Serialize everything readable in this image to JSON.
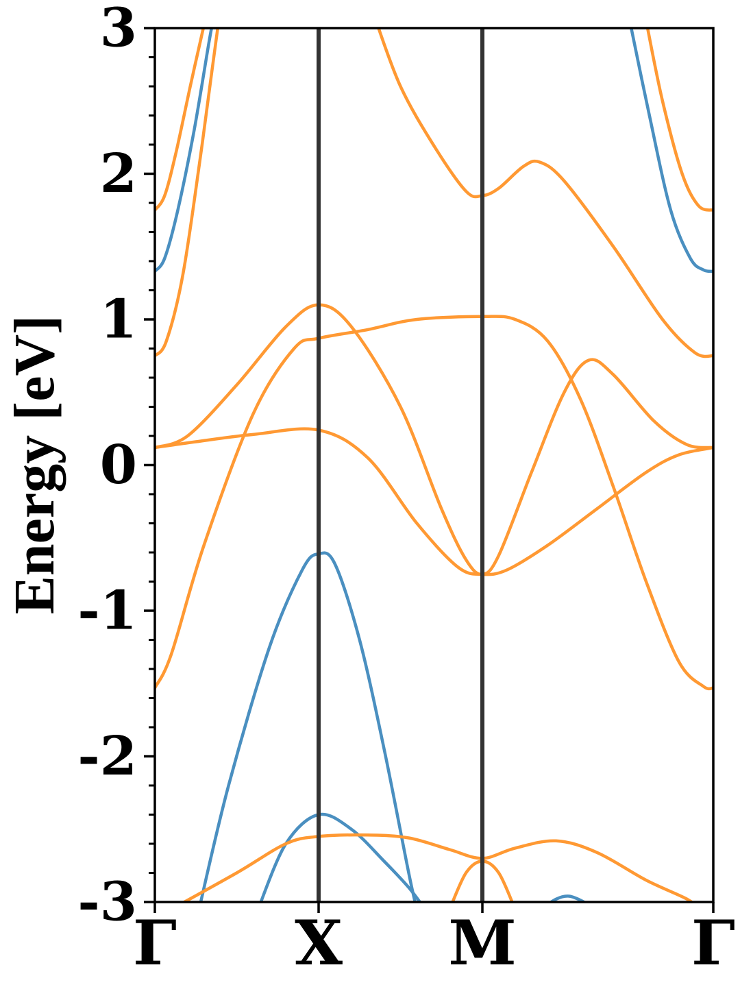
{
  "chart_data": {
    "type": "line",
    "title": "",
    "xlabel": "",
    "ylabel": "Energy [eV]",
    "ylim": [
      -3,
      3
    ],
    "y_ticks": [
      "3",
      "2",
      "1",
      "0",
      "-1",
      "-2",
      "-3"
    ],
    "y_minor_step": 0.2,
    "x_ticks": [
      {
        "label": "Γ",
        "pos": 0.0
      },
      {
        "label": "X",
        "pos": 1.0
      },
      {
        "label": "M",
        "pos": 2.0
      },
      {
        "label": "Γ",
        "pos": 3.41
      }
    ],
    "xlim": [
      0,
      3.41
    ],
    "grid": false,
    "legend": "none",
    "colors": {
      "blue": "#4a8fc0",
      "orange": "#ff9933",
      "vline": "#333333",
      "axis": "#000000"
    },
    "series": [
      {
        "color": "blue",
        "points": [
          [
            0,
            1.33
          ],
          [
            0.06,
            1.42
          ],
          [
            0.14,
            1.75
          ],
          [
            0.24,
            2.3
          ],
          [
            0.33,
            2.9
          ],
          [
            0.355,
            3.05
          ]
        ]
      },
      {
        "color": "orange",
        "points": [
          [
            0,
            1.75
          ],
          [
            0.06,
            1.85
          ],
          [
            0.13,
            2.15
          ],
          [
            0.22,
            2.62
          ],
          [
            0.3,
            3.02
          ]
        ]
      },
      {
        "color": "orange",
        "points": [
          [
            0,
            0.75
          ],
          [
            0.07,
            0.85
          ],
          [
            0.17,
            1.3
          ],
          [
            0.27,
            2.05
          ],
          [
            0.35,
            2.72
          ],
          [
            0.39,
            3.05
          ]
        ]
      },
      {
        "color": "orange",
        "points": [
          [
            0,
            0.12
          ],
          [
            0.25,
            0.16
          ],
          [
            0.6,
            0.21
          ],
          [
            1,
            0.24
          ],
          [
            1.3,
            0.05
          ],
          [
            1.6,
            -0.4
          ],
          [
            1.85,
            -0.7
          ],
          [
            2,
            -0.75
          ],
          [
            2.15,
            -0.72
          ],
          [
            2.4,
            -0.55
          ],
          [
            2.7,
            -0.3
          ],
          [
            3.0,
            -0.05
          ],
          [
            3.2,
            0.07
          ],
          [
            3.41,
            0.12
          ]
        ]
      },
      {
        "color": "orange",
        "points": [
          [
            0,
            0.12
          ],
          [
            0.2,
            0.2
          ],
          [
            0.5,
            0.55
          ],
          [
            0.8,
            0.95
          ],
          [
            1,
            1.1
          ],
          [
            1.2,
            0.95
          ],
          [
            1.5,
            0.4
          ],
          [
            1.75,
            -0.3
          ],
          [
            1.9,
            -0.65
          ],
          [
            2,
            -0.75
          ],
          [
            2.1,
            -0.62
          ],
          [
            2.3,
            -0.05
          ],
          [
            2.5,
            0.5
          ],
          [
            2.65,
            0.72
          ],
          [
            2.8,
            0.62
          ],
          [
            3.05,
            0.3
          ],
          [
            3.25,
            0.14
          ],
          [
            3.41,
            0.12
          ]
        ]
      },
      {
        "color": "orange",
        "points": [
          [
            0,
            -1.53
          ],
          [
            0.1,
            -1.3
          ],
          [
            0.3,
            -0.55
          ],
          [
            0.6,
            0.35
          ],
          [
            0.85,
            0.8
          ],
          [
            1,
            0.87
          ],
          [
            1.3,
            0.93
          ],
          [
            1.6,
            1.0
          ],
          [
            2,
            1.02
          ],
          [
            2.2,
            1.0
          ],
          [
            2.4,
            0.85
          ],
          [
            2.6,
            0.45
          ],
          [
            2.8,
            -0.15
          ],
          [
            3.0,
            -0.8
          ],
          [
            3.2,
            -1.35
          ],
          [
            3.35,
            -1.52
          ],
          [
            3.41,
            -1.53
          ]
        ]
      },
      {
        "color": "orange",
        "points": [
          [
            1.35,
            3.05
          ],
          [
            1.5,
            2.6
          ],
          [
            1.7,
            2.2
          ],
          [
            1.9,
            1.88
          ],
          [
            2,
            1.85
          ],
          [
            2.1,
            1.9
          ],
          [
            2.25,
            2.05
          ],
          [
            2.35,
            2.08
          ],
          [
            2.5,
            1.95
          ],
          [
            2.8,
            1.5
          ],
          [
            3.1,
            1.0
          ],
          [
            3.3,
            0.77
          ],
          [
            3.41,
            0.75
          ]
        ]
      },
      {
        "color": "blue",
        "points": [
          [
            2.9,
            3.05
          ],
          [
            3.02,
            2.4
          ],
          [
            3.15,
            1.75
          ],
          [
            3.27,
            1.42
          ],
          [
            3.35,
            1.34
          ],
          [
            3.41,
            1.33
          ]
        ]
      },
      {
        "color": "orange",
        "points": [
          [
            3.0,
            3.05
          ],
          [
            3.1,
            2.5
          ],
          [
            3.22,
            2.0
          ],
          [
            3.32,
            1.78
          ],
          [
            3.41,
            1.75
          ]
        ]
      },
      {
        "color": "blue",
        "points": [
          [
            0.27,
            -3.05
          ],
          [
            0.45,
            -2.2
          ],
          [
            0.7,
            -1.25
          ],
          [
            0.9,
            -0.72
          ],
          [
            1,
            -0.61
          ],
          [
            1.1,
            -0.68
          ],
          [
            1.25,
            -1.2
          ],
          [
            1.4,
            -1.95
          ],
          [
            1.55,
            -2.8
          ],
          [
            1.6,
            -3.05
          ]
        ]
      },
      {
        "color": "blue",
        "points": [
          [
            0.63,
            -3.05
          ],
          [
            0.8,
            -2.6
          ],
          [
            1,
            -2.4
          ],
          [
            1.2,
            -2.5
          ],
          [
            1.4,
            -2.72
          ],
          [
            1.55,
            -2.9
          ],
          [
            1.65,
            -3.05
          ]
        ]
      },
      {
        "color": "orange",
        "points": [
          [
            0.1,
            -3.05
          ],
          [
            0.5,
            -2.8
          ],
          [
            0.8,
            -2.6
          ],
          [
            1,
            -2.55
          ],
          [
            1.3,
            -2.54
          ],
          [
            1.55,
            -2.56
          ],
          [
            1.8,
            -2.64
          ],
          [
            2,
            -2.7
          ],
          [
            2.2,
            -2.63
          ],
          [
            2.45,
            -2.58
          ],
          [
            2.7,
            -2.66
          ],
          [
            3.0,
            -2.85
          ],
          [
            3.25,
            -2.98
          ],
          [
            3.32,
            -3.05
          ]
        ]
      },
      {
        "color": "orange",
        "points": [
          [
            1.8,
            -3.05
          ],
          [
            1.9,
            -2.8
          ],
          [
            2,
            -2.72
          ],
          [
            2.1,
            -2.8
          ],
          [
            2.2,
            -3.05
          ]
        ]
      },
      {
        "color": "blue",
        "points": [
          [
            2.36,
            -3.05
          ],
          [
            2.45,
            -2.98
          ],
          [
            2.53,
            -2.96
          ],
          [
            2.62,
            -3.0
          ],
          [
            2.68,
            -3.05
          ]
        ]
      }
    ]
  }
}
